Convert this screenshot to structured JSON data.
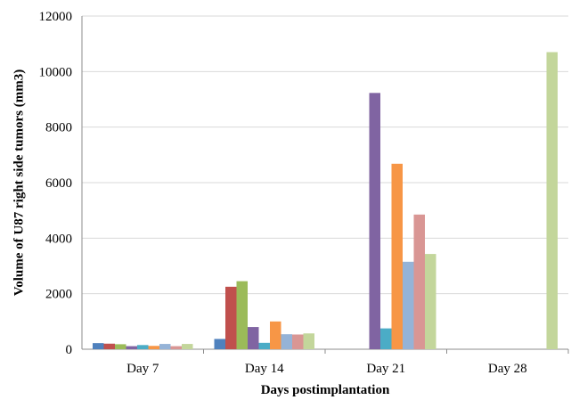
{
  "chart_data": {
    "type": "bar",
    "xlabel": "Days postimplantation",
    "ylabel": "Volume of U87 right side tumors (mm3)",
    "ylim": [
      0,
      12000
    ],
    "yticks": [
      0,
      2000,
      4000,
      6000,
      8000,
      10000,
      12000
    ],
    "grid": "horizontal",
    "legend": "none",
    "categories": [
      "Day 7",
      "Day 14",
      "Day 21",
      "Day 28"
    ],
    "series": [
      {
        "color": "#4f81bd",
        "values": [
          220,
          370,
          null,
          null
        ]
      },
      {
        "color": "#c0504d",
        "values": [
          200,
          2250,
          null,
          null
        ]
      },
      {
        "color": "#9bbb59",
        "values": [
          180,
          2450,
          null,
          null
        ]
      },
      {
        "color": "#8064a2",
        "values": [
          110,
          800,
          9230,
          null
        ]
      },
      {
        "color": "#4bacc6",
        "values": [
          150,
          230,
          750,
          null
        ]
      },
      {
        "color": "#f79646",
        "values": [
          120,
          1000,
          6680,
          null
        ]
      },
      {
        "color": "#95b3d7",
        "values": [
          190,
          540,
          3150,
          null
        ]
      },
      {
        "color": "#d99694",
        "values": [
          110,
          530,
          4850,
          null
        ]
      },
      {
        "color": "#c3d69b",
        "values": [
          190,
          570,
          3430,
          10700
        ]
      }
    ]
  }
}
